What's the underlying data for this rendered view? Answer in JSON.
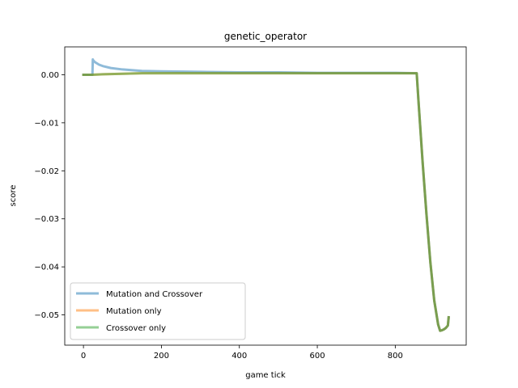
{
  "chart_data": {
    "type": "line",
    "title": "genetic_operator",
    "xlabel": "game tick",
    "ylabel": "score",
    "xlim": [
      -48,
      982
    ],
    "ylim": [
      -0.0563,
      0.0058
    ],
    "xticks": [
      0,
      200,
      400,
      600,
      800
    ],
    "xtick_labels": [
      "0",
      "200",
      "400",
      "600",
      "800"
    ],
    "yticks": [
      0.0,
      -0.01,
      -0.02,
      -0.03,
      -0.04,
      -0.05
    ],
    "ytick_labels": [
      "0.00",
      "−0.01",
      "−0.02",
      "−0.03",
      "−0.04",
      "−0.05"
    ],
    "grid": false,
    "legend_position": "lower-left",
    "series": [
      {
        "name": "Mutation and Crossover",
        "color": "#1f77b4",
        "x": [
          0,
          23,
          24,
          25,
          30,
          40,
          50,
          70,
          100,
          150,
          200,
          300,
          400,
          500,
          600,
          700,
          800,
          855,
          860,
          870,
          880,
          890,
          900,
          910,
          915,
          920,
          925,
          930,
          935,
          937
        ],
        "y": [
          0.0,
          0.0,
          0.0032,
          0.003,
          0.0026,
          0.0021,
          0.0018,
          0.0014,
          0.0011,
          0.0008,
          0.0007,
          0.0006,
          0.0005,
          0.0005,
          0.0004,
          0.0004,
          0.0004,
          0.0003,
          -0.006,
          -0.018,
          -0.029,
          -0.039,
          -0.047,
          -0.052,
          -0.0533,
          -0.0532,
          -0.053,
          -0.0527,
          -0.0522,
          -0.0505
        ]
      },
      {
        "name": "Mutation only",
        "color": "#ff7f0e",
        "x": [
          0,
          23,
          50,
          100,
          150,
          200,
          400,
          600,
          800,
          855,
          860,
          870,
          880,
          890,
          900,
          910,
          915,
          920,
          925,
          930,
          935,
          937
        ],
        "y": [
          0.0,
          0.0,
          0.0001,
          0.0002,
          0.0003,
          0.0003,
          0.0003,
          0.0003,
          0.0003,
          0.0003,
          -0.006,
          -0.018,
          -0.029,
          -0.039,
          -0.047,
          -0.052,
          -0.0533,
          -0.0532,
          -0.053,
          -0.0527,
          -0.0522,
          -0.0505
        ]
      },
      {
        "name": "Crossover only",
        "color": "#2ca02c",
        "x": [
          0,
          23,
          50,
          100,
          150,
          200,
          400,
          600,
          800,
          855,
          860,
          870,
          880,
          890,
          900,
          910,
          915,
          920,
          925,
          930,
          935,
          937
        ],
        "y": [
          0.0,
          0.0,
          0.0001,
          0.0002,
          0.0003,
          0.0003,
          0.0003,
          0.0003,
          0.0003,
          0.0003,
          -0.006,
          -0.018,
          -0.029,
          -0.039,
          -0.047,
          -0.052,
          -0.0533,
          -0.0532,
          -0.053,
          -0.0527,
          -0.0522,
          -0.0505
        ]
      }
    ]
  }
}
